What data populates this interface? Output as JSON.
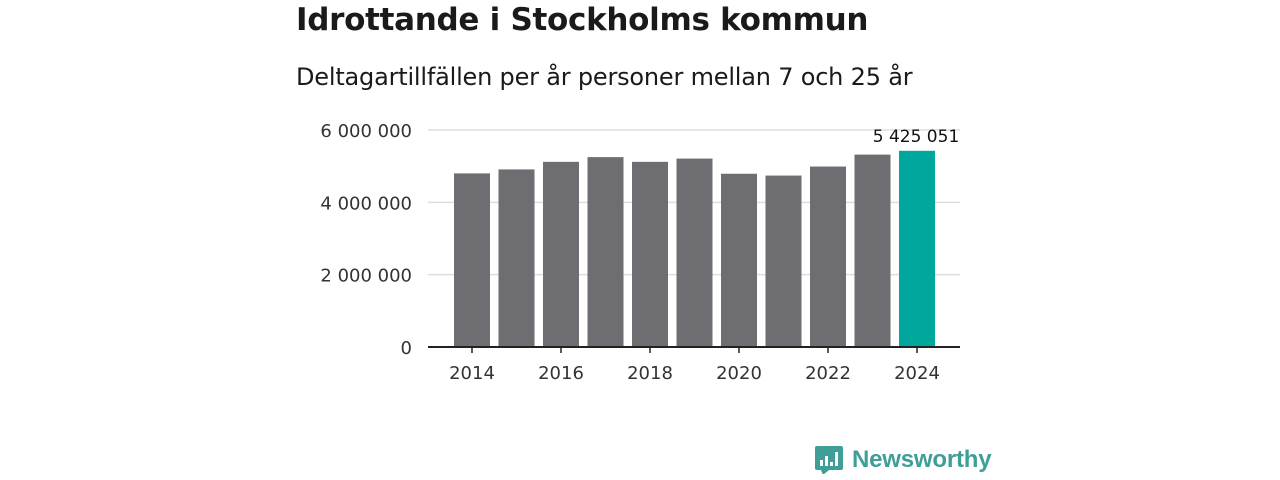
{
  "title": "Idrottande i Stockholms kommun",
  "subtitle": "Deltagartillfällen per år personer mellan 7 och 25 år",
  "brand": {
    "name": "Newsworthy"
  },
  "colors": {
    "bar": "#6e6d72",
    "highlight": "#00a79d",
    "grid": "#dddddd",
    "axis": "#222222",
    "text": "#333333"
  },
  "chart_data": {
    "type": "bar",
    "title": "Idrottande i Stockholms kommun",
    "subtitle": "Deltagartillfällen per år personer mellan 7 och 25 år",
    "xlabel": "",
    "ylabel": "",
    "categories": [
      "2014",
      "2015",
      "2016",
      "2017",
      "2018",
      "2019",
      "2020",
      "2021",
      "2022",
      "2023",
      "2024"
    ],
    "values": [
      4800000,
      4910000,
      5120000,
      5250000,
      5120000,
      5210000,
      4790000,
      4740000,
      4990000,
      5320000,
      5425051
    ],
    "highlight_index": 10,
    "ylim": [
      0,
      6000000
    ],
    "yticks": [
      0,
      2000000,
      4000000,
      6000000
    ],
    "ytick_labels": [
      "0",
      "2 000 000",
      "4 000 000",
      "6 000 000"
    ],
    "xtick_labels": [
      "2014",
      "2016",
      "2018",
      "2020",
      "2022",
      "2024"
    ],
    "annotation": {
      "index": 10,
      "text": "5 425 051"
    },
    "grid": true,
    "legend": "none"
  }
}
